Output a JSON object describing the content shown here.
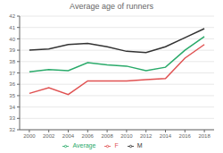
{
  "chart_data": {
    "type": "line",
    "title": "Average age of runners",
    "x": [
      2000,
      2002,
      2004,
      2006,
      2008,
      2010,
      2012,
      2014,
      2016,
      2018
    ],
    "series": [
      {
        "name": "F",
        "color": "#e05252",
        "values": [
          35.2,
          35.7,
          35.1,
          36.3,
          36.3,
          36.3,
          36.4,
          36.5,
          38.3,
          39.5
        ]
      },
      {
        "name": "M",
        "color": "#333333",
        "values": [
          39.0,
          39.1,
          39.5,
          39.6,
          39.3,
          38.9,
          38.8,
          39.3,
          40.1,
          40.9
        ]
      },
      {
        "name": "Average",
        "color": "#2aaa6a",
        "values": [
          37.1,
          37.3,
          37.2,
          37.9,
          37.7,
          37.6,
          37.2,
          37.5,
          39.0,
          40.2
        ]
      }
    ],
    "xlim": [
      1999,
      2019
    ],
    "xticks": [
      2000,
      2002,
      2004,
      2006,
      2008,
      2010,
      2012,
      2014,
      2016,
      2018
    ],
    "ylim": [
      32,
      42
    ],
    "yticks": [
      32,
      33,
      34,
      35,
      36,
      37,
      38,
      39,
      40,
      41,
      42
    ],
    "grid": "y",
    "legend": "bottom"
  }
}
